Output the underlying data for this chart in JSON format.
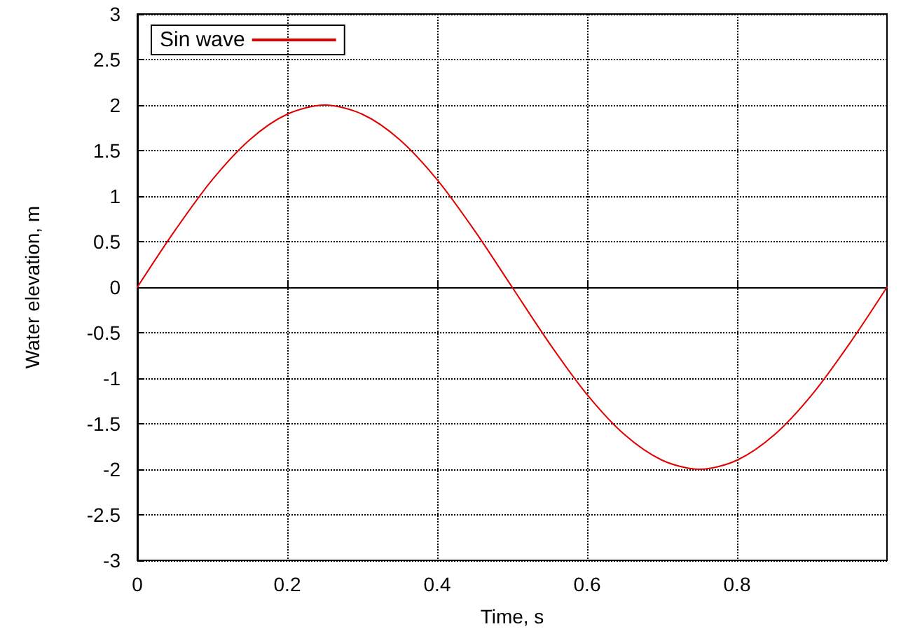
{
  "chart_data": {
    "type": "line",
    "xlabel": "Time, s",
    "ylabel": "Water elevation, m",
    "x": [
      0,
      0.05,
      0.1,
      0.15,
      0.2,
      0.25,
      0.3,
      0.35,
      0.4,
      0.45,
      0.5,
      0.55,
      0.6,
      0.65,
      0.7,
      0.75,
      0.8,
      0.85,
      0.9,
      0.95,
      1
    ],
    "series": [
      {
        "name": "Sin wave",
        "color": "#e00000",
        "values": [
          0,
          0.62,
          1.18,
          1.62,
          1.9,
          2,
          1.9,
          1.62,
          1.18,
          0.62,
          0,
          -0.62,
          -1.18,
          -1.62,
          -1.9,
          -2,
          -1.9,
          -1.62,
          -1.18,
          -0.62,
          0
        ]
      }
    ],
    "xlim": [
      0,
      1
    ],
    "xticks": [
      0,
      0.2,
      0.4,
      0.6,
      0.8
    ],
    "ylim": [
      -3,
      3
    ],
    "yticks": [
      -3,
      -2.5,
      -2,
      -1.5,
      -1,
      -0.5,
      0,
      0.5,
      1,
      1.5,
      2,
      2.5,
      3
    ],
    "grid": true,
    "legend": "top left",
    "marker": "none",
    "line_style": "solid"
  }
}
